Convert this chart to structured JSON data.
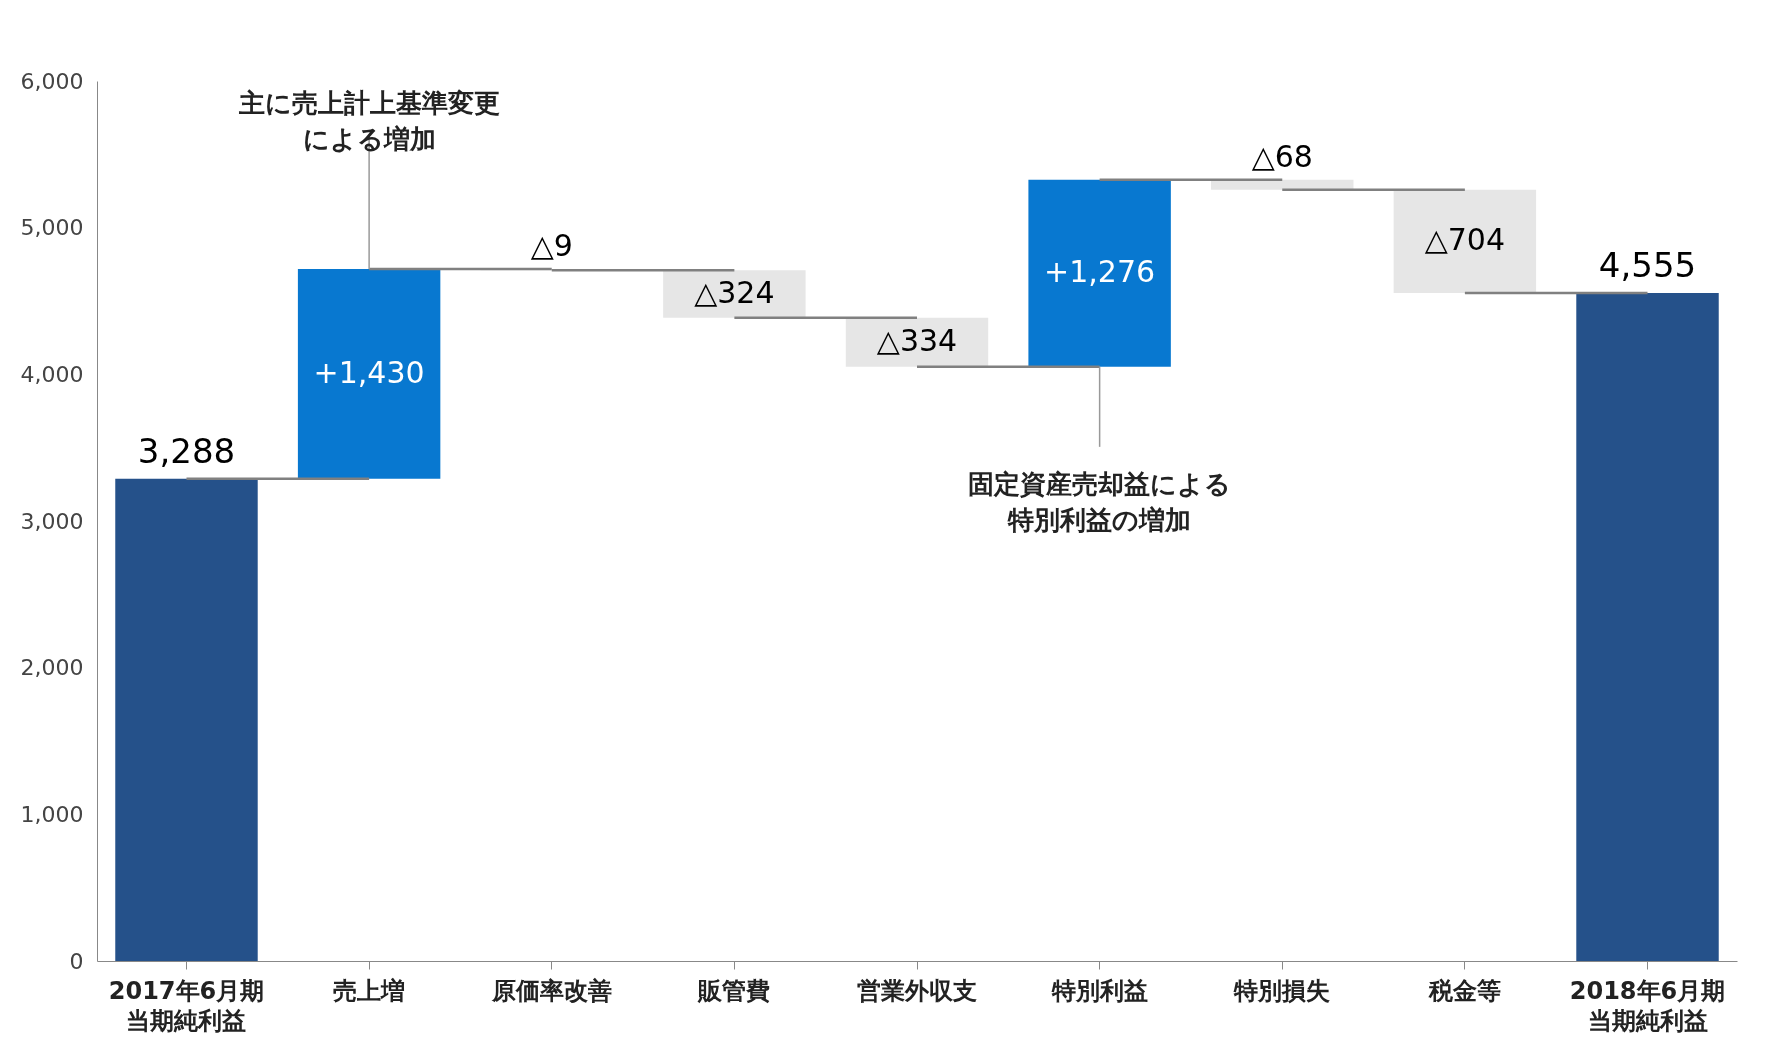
{
  "chart_data": {
    "type": "bar",
    "categories": [
      "2017年6月期当期純利益",
      "売上増",
      "原価率改善",
      "販管費",
      "営業外収支",
      "特別利益",
      "特別損失",
      "税金等",
      "2018年6月期当期純利益"
    ],
    "base": [
      0,
      3288,
      4718,
      4709,
      4385,
      4051,
      5327,
      5259,
      0
    ],
    "values": [
      3288,
      1430,
      -9,
      -324,
      -334,
      1276,
      -68,
      -704,
      4555
    ],
    "colors": [
      "#25518a",
      "#0878d0",
      "#e6e6e6",
      "#e6e6e6",
      "#e6e6e6",
      "#0878d0",
      "#e6e6e6",
      "#e6e6e6",
      "#25518a"
    ],
    "value_labels": [
      "3,288",
      "+1,430",
      "△9",
      "△324",
      "△334",
      "+1,276",
      "△68",
      "△704",
      "4,555"
    ],
    "ylim": [
      0,
      6000
    ],
    "yticks": [
      0,
      {
        "value": 1000,
        "label": "1,000"
      },
      {
        "value": 2000,
        "label": "2,000"
      },
      {
        "value": 3000,
        "label": "3,000"
      },
      {
        "value": 4000,
        "label": "4,000"
      },
      {
        "value": 5000,
        "label": "5,000"
      },
      {
        "value": 6000,
        "label": "6,000"
      }
    ],
    "grid": false,
    "legend": false,
    "annotations": [
      {
        "text": "主に売上計上基準変更による増加",
        "x": "売上増",
        "y": 4718
      },
      {
        "text": "固定資産売却益による特別利益の増加",
        "x": "特別利益",
        "y": 4051
      }
    ]
  }
}
